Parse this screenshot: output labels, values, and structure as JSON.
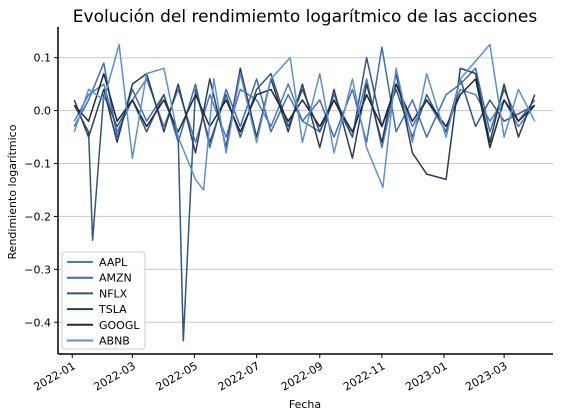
{
  "chart_data": {
    "type": "line",
    "title": "Evolución del rendimiemto logarítmico de las acciones",
    "xlabel": "Fecha",
    "ylabel": "Rendimiento logarítmico",
    "x_range": [
      "2021-12-18",
      "2023-04-18"
    ],
    "ylim": [
      -0.46,
      0.158
    ],
    "y_ticks": [
      0.1,
      0.0,
      -0.1,
      -0.2,
      -0.3,
      -0.4
    ],
    "y_tick_labels": [
      "0.1",
      "0.0",
      "−0.1",
      "−0.2",
      "−0.3",
      "−0.4"
    ],
    "x_ticks": [
      "2022-01-01",
      "2022-03-01",
      "2022-05-01",
      "2022-07-01",
      "2022-09-01",
      "2022-11-01",
      "2023-01-01",
      "2023-03-01"
    ],
    "x_tick_labels": [
      "2022-01",
      "2022-03",
      "2022-05",
      "2022-07",
      "2022-09",
      "2022-11",
      "2023-01",
      "2023-03"
    ],
    "grid": "horizontal",
    "legend_position": "lower-left",
    "series": [
      {
        "name": "AAPL",
        "color": "#4a7bc4",
        "points": [
          [
            "2022-01-03",
            -0.02
          ],
          [
            "2022-01-17",
            0.03
          ],
          [
            "2022-02-01",
            0.05
          ],
          [
            "2022-02-14",
            -0.04
          ],
          [
            "2022-03-01",
            0.02
          ],
          [
            "2022-03-15",
            0.06
          ],
          [
            "2022-04-01",
            -0.03
          ],
          [
            "2022-04-15",
            0.04
          ],
          [
            "2022-05-02",
            -0.06
          ],
          [
            "2022-05-16",
            0.03
          ],
          [
            "2022-06-01",
            -0.05
          ],
          [
            "2022-06-15",
            0.04
          ],
          [
            "2022-07-01",
            0.02
          ],
          [
            "2022-07-15",
            -0.03
          ],
          [
            "2022-08-01",
            0.05
          ],
          [
            "2022-08-15",
            -0.02
          ],
          [
            "2022-09-01",
            -0.04
          ],
          [
            "2022-09-15",
            0.03
          ],
          [
            "2022-10-03",
            -0.05
          ],
          [
            "2022-10-17",
            0.06
          ],
          [
            "2022-11-01",
            -0.07
          ],
          [
            "2022-11-15",
            0.05
          ],
          [
            "2022-12-01",
            -0.03
          ],
          [
            "2022-12-15",
            0.02
          ],
          [
            "2023-01-03",
            -0.04
          ],
          [
            "2023-01-17",
            0.04
          ],
          [
            "2023-02-01",
            0.03
          ],
          [
            "2023-02-15",
            -0.02
          ],
          [
            "2023-03-01",
            0.02
          ],
          [
            "2023-03-15",
            -0.03
          ],
          [
            "2023-03-31",
            0.01
          ]
        ]
      },
      {
        "name": "AMZN",
        "color": "#3d6fae",
        "points": [
          [
            "2022-01-03",
            -0.03
          ],
          [
            "2022-01-17",
            0.02
          ],
          [
            "2022-02-01",
            0.09
          ],
          [
            "2022-02-14",
            -0.05
          ],
          [
            "2022-03-01",
            0.04
          ],
          [
            "2022-03-15",
            -0.02
          ],
          [
            "2022-04-01",
            0.03
          ],
          [
            "2022-04-15",
            -0.06
          ],
          [
            "2022-05-02",
            0.05
          ],
          [
            "2022-05-16",
            -0.07
          ],
          [
            "2022-06-01",
            0.04
          ],
          [
            "2022-06-15",
            -0.03
          ],
          [
            "2022-07-01",
            0.06
          ],
          [
            "2022-07-15",
            -0.04
          ],
          [
            "2022-08-01",
            0.03
          ],
          [
            "2022-08-15",
            -0.02
          ],
          [
            "2022-09-01",
            0.02
          ],
          [
            "2022-09-15",
            -0.05
          ],
          [
            "2022-10-03",
            0.04
          ],
          [
            "2022-10-17",
            -0.06
          ],
          [
            "2022-11-01",
            0.12
          ],
          [
            "2022-11-15",
            -0.04
          ],
          [
            "2022-12-01",
            0.02
          ],
          [
            "2022-12-15",
            -0.05
          ],
          [
            "2023-01-03",
            0.03
          ],
          [
            "2023-01-17",
            0.05
          ],
          [
            "2023-02-01",
            0.08
          ],
          [
            "2023-02-15",
            -0.04
          ],
          [
            "2023-03-01",
            0.04
          ],
          [
            "2023-03-15",
            -0.02
          ],
          [
            "2023-03-31",
            0.02
          ]
        ]
      },
      {
        "name": "NFLX",
        "color": "#34567a",
        "points": [
          [
            "2022-01-03",
            0.01
          ],
          [
            "2022-01-17",
            -0.04
          ],
          [
            "2022-01-21",
            -0.245
          ],
          [
            "2022-02-01",
            0.03
          ],
          [
            "2022-02-14",
            -0.03
          ],
          [
            "2022-03-01",
            0.02
          ],
          [
            "2022-03-15",
            -0.04
          ],
          [
            "2022-04-01",
            0.03
          ],
          [
            "2022-04-15",
            -0.05
          ],
          [
            "2022-04-20",
            -0.435
          ],
          [
            "2022-05-02",
            0.04
          ],
          [
            "2022-05-16",
            -0.06
          ],
          [
            "2022-06-01",
            0.03
          ],
          [
            "2022-06-15",
            -0.05
          ],
          [
            "2022-07-01",
            0.04
          ],
          [
            "2022-07-15",
            0.07
          ],
          [
            "2022-08-01",
            -0.03
          ],
          [
            "2022-08-15",
            0.04
          ],
          [
            "2022-09-01",
            -0.04
          ],
          [
            "2022-09-15",
            0.02
          ],
          [
            "2022-10-03",
            -0.05
          ],
          [
            "2022-10-17",
            0.1
          ],
          [
            "2022-11-01",
            -0.03
          ],
          [
            "2022-11-15",
            0.04
          ],
          [
            "2022-12-01",
            -0.05
          ],
          [
            "2022-12-15",
            0.03
          ],
          [
            "2023-01-03",
            -0.04
          ],
          [
            "2023-01-17",
            0.06
          ],
          [
            "2023-02-01",
            -0.03
          ],
          [
            "2023-02-15",
            0.02
          ],
          [
            "2023-03-01",
            -0.02
          ],
          [
            "2023-03-31",
            0.01
          ]
        ]
      },
      {
        "name": "TSLA",
        "color": "#2b3d55",
        "points": [
          [
            "2022-01-03",
            0.02
          ],
          [
            "2022-01-17",
            -0.05
          ],
          [
            "2022-02-01",
            0.04
          ],
          [
            "2022-02-14",
            -0.06
          ],
          [
            "2022-03-01",
            0.05
          ],
          [
            "2022-03-15",
            0.07
          ],
          [
            "2022-04-01",
            -0.04
          ],
          [
            "2022-04-15",
            0.05
          ],
          [
            "2022-05-02",
            -0.08
          ],
          [
            "2022-05-16",
            0.06
          ],
          [
            "2022-06-01",
            -0.07
          ],
          [
            "2022-06-15",
            0.08
          ],
          [
            "2022-07-01",
            -0.05
          ],
          [
            "2022-07-15",
            0.06
          ],
          [
            "2022-08-01",
            -0.04
          ],
          [
            "2022-08-15",
            0.05
          ],
          [
            "2022-09-01",
            -0.07
          ],
          [
            "2022-09-15",
            0.04
          ],
          [
            "2022-10-03",
            -0.09
          ],
          [
            "2022-10-17",
            0.05
          ],
          [
            "2022-11-01",
            -0.06
          ],
          [
            "2022-11-15",
            0.07
          ],
          [
            "2022-12-01",
            -0.08
          ],
          [
            "2022-12-15",
            -0.12
          ],
          [
            "2023-01-03",
            -0.13
          ],
          [
            "2023-01-17",
            0.08
          ],
          [
            "2023-02-01",
            0.07
          ],
          [
            "2023-02-15",
            -0.06
          ],
          [
            "2023-03-01",
            0.05
          ],
          [
            "2023-03-15",
            -0.05
          ],
          [
            "2023-03-31",
            0.03
          ]
        ]
      },
      {
        "name": "GOOGL",
        "color": "#1e2836",
        "points": [
          [
            "2022-01-03",
            0.01
          ],
          [
            "2022-01-17",
            -0.02
          ],
          [
            "2022-02-01",
            0.07
          ],
          [
            "2022-02-14",
            -0.02
          ],
          [
            "2022-03-01",
            0.02
          ],
          [
            "2022-03-15",
            -0.03
          ],
          [
            "2022-04-01",
            0.02
          ],
          [
            "2022-04-15",
            -0.04
          ],
          [
            "2022-05-02",
            0.03
          ],
          [
            "2022-05-16",
            -0.03
          ],
          [
            "2022-06-01",
            0.02
          ],
          [
            "2022-06-15",
            -0.04
          ],
          [
            "2022-07-01",
            0.03
          ],
          [
            "2022-07-15",
            0.04
          ],
          [
            "2022-08-01",
            -0.02
          ],
          [
            "2022-08-15",
            0.02
          ],
          [
            "2022-09-01",
            -0.03
          ],
          [
            "2022-09-15",
            0.02
          ],
          [
            "2022-10-03",
            -0.04
          ],
          [
            "2022-10-17",
            0.03
          ],
          [
            "2022-11-01",
            -0.03
          ],
          [
            "2022-11-15",
            0.05
          ],
          [
            "2022-12-01",
            -0.02
          ],
          [
            "2022-12-15",
            0.02
          ],
          [
            "2023-01-03",
            -0.03
          ],
          [
            "2023-01-17",
            0.03
          ],
          [
            "2023-02-01",
            0.06
          ],
          [
            "2023-02-15",
            -0.07
          ],
          [
            "2023-03-01",
            0.02
          ],
          [
            "2023-03-15",
            -0.02
          ],
          [
            "2023-03-31",
            0.01
          ]
        ]
      },
      {
        "name": "ABNB",
        "color": "#5b8fd6",
        "points": [
          [
            "2022-01-03",
            -0.04
          ],
          [
            "2022-01-17",
            0.04
          ],
          [
            "2022-02-01",
            0.02
          ],
          [
            "2022-02-16",
            0.125
          ],
          [
            "2022-03-01",
            -0.09
          ],
          [
            "2022-03-15",
            0.07
          ],
          [
            "2022-04-01",
            0.08
          ],
          [
            "2022-04-15",
            -0.05
          ],
          [
            "2022-05-02",
            -0.13
          ],
          [
            "2022-05-10",
            -0.15
          ],
          [
            "2022-05-20",
            0.06
          ],
          [
            "2022-06-01",
            -0.08
          ],
          [
            "2022-06-15",
            0.07
          ],
          [
            "2022-07-01",
            -0.06
          ],
          [
            "2022-07-15",
            0.06
          ],
          [
            "2022-08-03",
            0.1
          ],
          [
            "2022-08-15",
            -0.06
          ],
          [
            "2022-09-01",
            0.07
          ],
          [
            "2022-09-15",
            -0.08
          ],
          [
            "2022-10-03",
            0.06
          ],
          [
            "2022-10-17",
            -0.07
          ],
          [
            "2022-11-02",
            -0.145
          ],
          [
            "2022-11-15",
            0.08
          ],
          [
            "2022-12-01",
            -0.06
          ],
          [
            "2022-12-15",
            0.07
          ],
          [
            "2023-01-03",
            -0.05
          ],
          [
            "2023-01-17",
            0.06
          ],
          [
            "2023-02-15",
            0.125
          ],
          [
            "2023-03-01",
            -0.05
          ],
          [
            "2023-03-15",
            0.04
          ],
          [
            "2023-03-31",
            -0.02
          ]
        ]
      }
    ]
  }
}
